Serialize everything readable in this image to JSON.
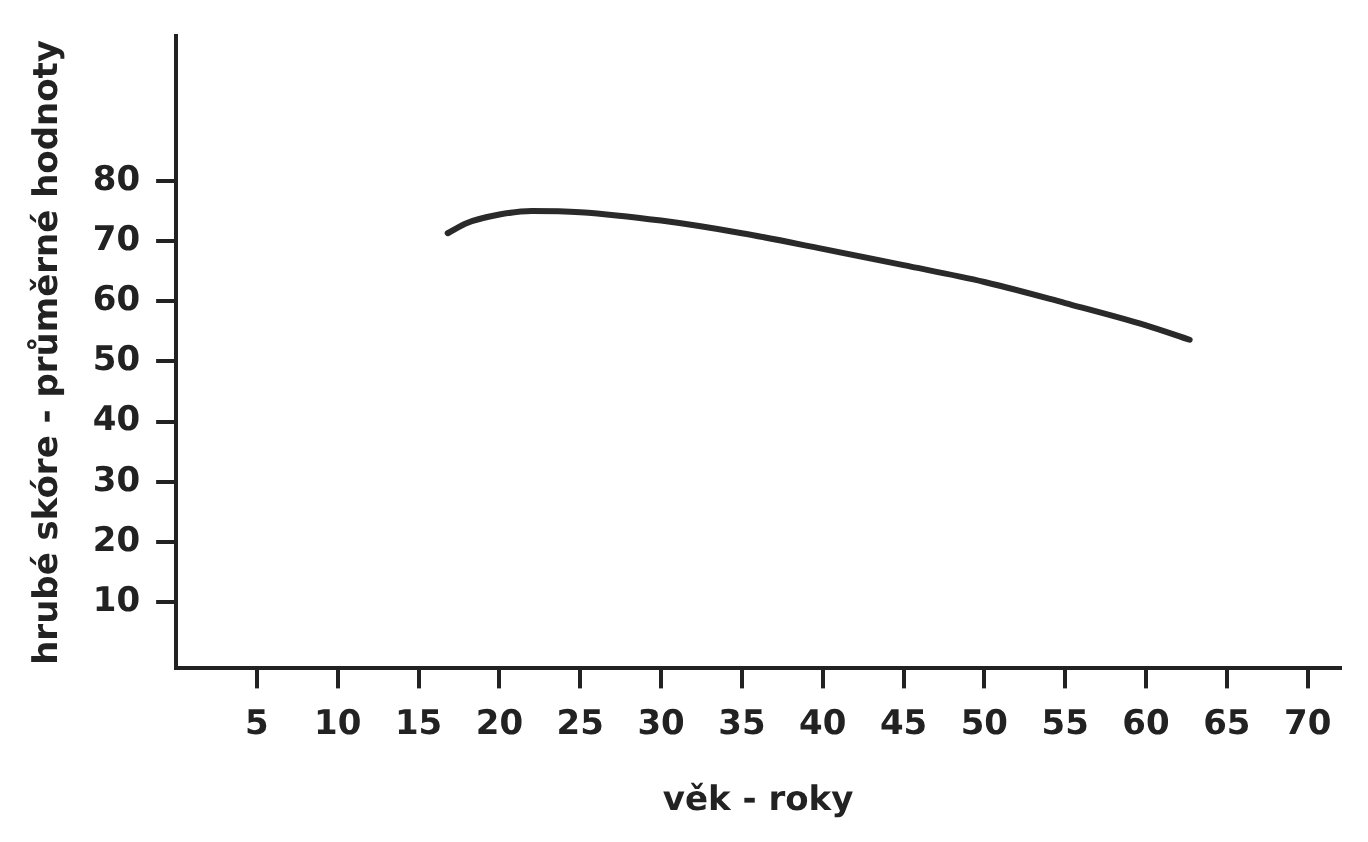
{
  "chart_data": {
    "type": "line",
    "xlabel": "věk - roky",
    "ylabel": "hrubé skóre - průměrné hodnoty",
    "series": [
      {
        "color": "#2a2a2a",
        "x": [
          16.8,
          18,
          20,
          22,
          25,
          30,
          35,
          40,
          45,
          50,
          55,
          60,
          62.7
        ],
        "values": [
          71.3,
          73,
          74.4,
          75,
          74.8,
          73.4,
          71.3,
          68.7,
          66,
          63.2,
          59.7,
          56,
          53.6
        ]
      }
    ],
    "xlim": [
      0,
      72
    ],
    "xticks": [
      5,
      10,
      15,
      20,
      25,
      30,
      35,
      40,
      45,
      50,
      55,
      60,
      65,
      70
    ],
    "ylim": [
      -1,
      104
    ],
    "yticks": [
      10,
      20,
      30,
      40,
      50,
      60,
      70,
      80
    ],
    "grid": false,
    "legend": false,
    "marker": "none",
    "line_style": "solid"
  }
}
